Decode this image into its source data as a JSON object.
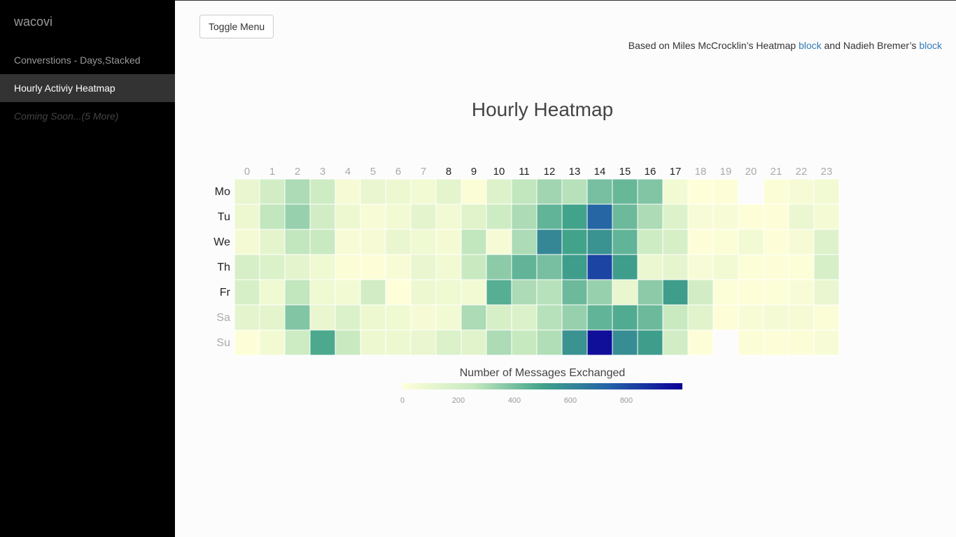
{
  "sidebar": {
    "brand": "wacovi",
    "items": [
      {
        "label": "Converstions - Days,Stacked",
        "active": false
      },
      {
        "label": "Hourly Activiy Heatmap",
        "active": true
      },
      {
        "label": "Coming Soon...(5 More)",
        "active": false
      }
    ]
  },
  "header": {
    "toggle_label": "Toggle Menu",
    "credit": {
      "prefix": "Based on Miles McCrocklin’s Heatmap ",
      "link1": "block",
      "middle": " and Nadieh Bremer’s ",
      "link2": "block"
    }
  },
  "colors": {
    "scale": [
      "#ffffd9",
      "#c7e9c0",
      "#41a38a",
      "#225ea8",
      "#0c0096"
    ],
    "label_active": "#222222",
    "label_inactive": "#aaaaaa"
  },
  "chart_data": {
    "type": "heatmap",
    "title": "Hourly Heatmap",
    "x": [
      "0",
      "1",
      "2",
      "3",
      "4",
      "5",
      "6",
      "7",
      "8",
      "9",
      "10",
      "11",
      "12",
      "13",
      "14",
      "15",
      "16",
      "17",
      "18",
      "19",
      "20",
      "21",
      "22",
      "23"
    ],
    "x_bold": [
      false,
      false,
      false,
      false,
      false,
      false,
      false,
      false,
      true,
      true,
      true,
      true,
      true,
      true,
      true,
      true,
      true,
      true,
      false,
      false,
      false,
      false,
      false,
      false
    ],
    "y": [
      "Mo",
      "Tu",
      "We",
      "Th",
      "Fr",
      "Sa",
      "Su"
    ],
    "y_bold": [
      true,
      true,
      true,
      true,
      true,
      false,
      false
    ],
    "values": [
      [
        100,
        200,
        300,
        220,
        40,
        100,
        80,
        60,
        120,
        20,
        150,
        260,
        320,
        280,
        400,
        430,
        380,
        60,
        5,
        10,
        null,
        20,
        40,
        60
      ],
      [
        80,
        260,
        340,
        200,
        80,
        30,
        60,
        120,
        60,
        140,
        220,
        300,
        440,
        500,
        720,
        420,
        300,
        150,
        30,
        30,
        10,
        10,
        90,
        50
      ],
      [
        50,
        120,
        260,
        240,
        30,
        40,
        100,
        70,
        50,
        260,
        40,
        300,
        600,
        500,
        560,
        440,
        220,
        180,
        10,
        20,
        60,
        10,
        40,
        150
      ],
      [
        180,
        160,
        120,
        70,
        20,
        10,
        30,
        100,
        60,
        240,
        360,
        440,
        400,
        520,
        820,
        520,
        90,
        110,
        30,
        60,
        15,
        10,
        15,
        180
      ],
      [
        180,
        70,
        260,
        70,
        60,
        200,
        5,
        80,
        70,
        60,
        460,
        300,
        280,
        420,
        340,
        100,
        360,
        520,
        200,
        15,
        10,
        15,
        30,
        100
      ],
      [
        120,
        120,
        380,
        100,
        160,
        80,
        70,
        40,
        60,
        300,
        180,
        160,
        280,
        340,
        440,
        470,
        420,
        240,
        140,
        10,
        30,
        50,
        40,
        20
      ],
      [
        10,
        60,
        220,
        480,
        240,
        80,
        80,
        100,
        160,
        140,
        300,
        250,
        290,
        560,
        960,
        580,
        520,
        200,
        10,
        null,
        20,
        10,
        20,
        30
      ]
    ],
    "legend": {
      "title": "Number of Messages Exchanged",
      "ticks": [
        "0",
        "200",
        "400",
        "600",
        "800"
      ]
    }
  }
}
